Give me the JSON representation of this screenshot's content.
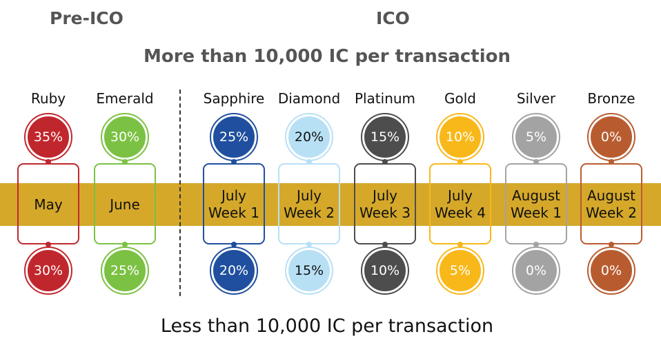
{
  "headings": {
    "pre_ico": "Pre-ICO",
    "ico": "ICO",
    "top_caption": "More than 10,000 IC per transaction",
    "bottom_caption": "Less than 10,000 IC per transaction"
  },
  "band_color": "#d5a82a",
  "tiers": [
    {
      "name": "Ruby",
      "top_bonus": "35%",
      "bottom_bonus": "30%",
      "date_line1": "May",
      "date_line2": "",
      "color": "#c0272d",
      "text_color": "#ffffff"
    },
    {
      "name": "Emerald",
      "top_bonus": "30%",
      "bottom_bonus": "25%",
      "date_line1": "June",
      "date_line2": "",
      "color": "#7bc143",
      "text_color": "#ffffff"
    },
    {
      "name": "Sapphire",
      "top_bonus": "25%",
      "bottom_bonus": "20%",
      "date_line1": "July",
      "date_line2": "Week 1",
      "color": "#1f4f9e",
      "text_color": "#ffffff"
    },
    {
      "name": "Diamond",
      "top_bonus": "20%",
      "bottom_bonus": "15%",
      "date_line1": "July",
      "date_line2": "Week 2",
      "color": "#b8e0f5",
      "text_color": "#111111"
    },
    {
      "name": "Platinum",
      "top_bonus": "15%",
      "bottom_bonus": "10%",
      "date_line1": "July",
      "date_line2": "Week 3",
      "color": "#4d4d4d",
      "text_color": "#ffffff"
    },
    {
      "name": "Gold",
      "top_bonus": "10%",
      "bottom_bonus": "5%",
      "date_line1": "July",
      "date_line2": "Week 4",
      "color": "#f9b81a",
      "text_color": "#ffffff"
    },
    {
      "name": "Silver",
      "top_bonus": "5%",
      "bottom_bonus": "0%",
      "date_line1": "August",
      "date_line2": "Week 1",
      "color": "#a3a3a3",
      "text_color": "#ffffff"
    },
    {
      "name": "Bronze",
      "top_bonus": "0%",
      "bottom_bonus": "0%",
      "date_line1": "August",
      "date_line2": "Week 2",
      "color": "#b85c30",
      "text_color": "#ffffff"
    }
  ]
}
